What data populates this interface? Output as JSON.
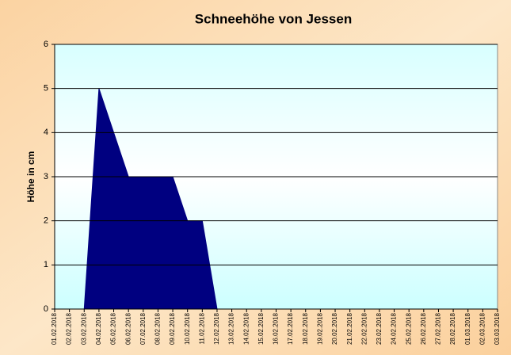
{
  "chart_data": {
    "type": "area",
    "title": "Schneehöhe von Jessen",
    "y_label": "Höhe in cm",
    "categories": [
      "01.02.2018",
      "02.02.2018",
      "03.02.2018",
      "04.02.2018",
      "05.02.2018",
      "06.02.2018",
      "07.02.2018",
      "08.02.2018",
      "09.02.2018",
      "10.02.2018",
      "11.02.2018",
      "12.02.2018",
      "13.02.2018",
      "14.02.2018",
      "15.02.2018",
      "16.02.2018",
      "17.02.2018",
      "18.02.2018",
      "19.02.2018",
      "20.02.2018",
      "21.02.2018",
      "22.02.2018",
      "23.02.2018",
      "24.02.2018",
      "25.02.2018",
      "26.02.2018",
      "27.02.2018",
      "28.02.2018",
      "01.03.2018",
      "02.03.2018",
      "03.03.2018"
    ],
    "values": [
      0,
      0,
      0,
      5,
      4,
      3,
      3,
      3,
      3,
      2,
      2,
      0,
      0,
      0,
      0,
      0,
      0,
      0,
      0,
      0,
      0,
      0,
      0,
      0,
      0,
      0,
      0,
      0,
      0,
      0,
      0
    ],
    "color": "#000080",
    "ylim": [
      0,
      6
    ],
    "yticks": [
      0,
      1,
      2,
      3,
      4,
      5,
      6
    ],
    "grid": true
  }
}
